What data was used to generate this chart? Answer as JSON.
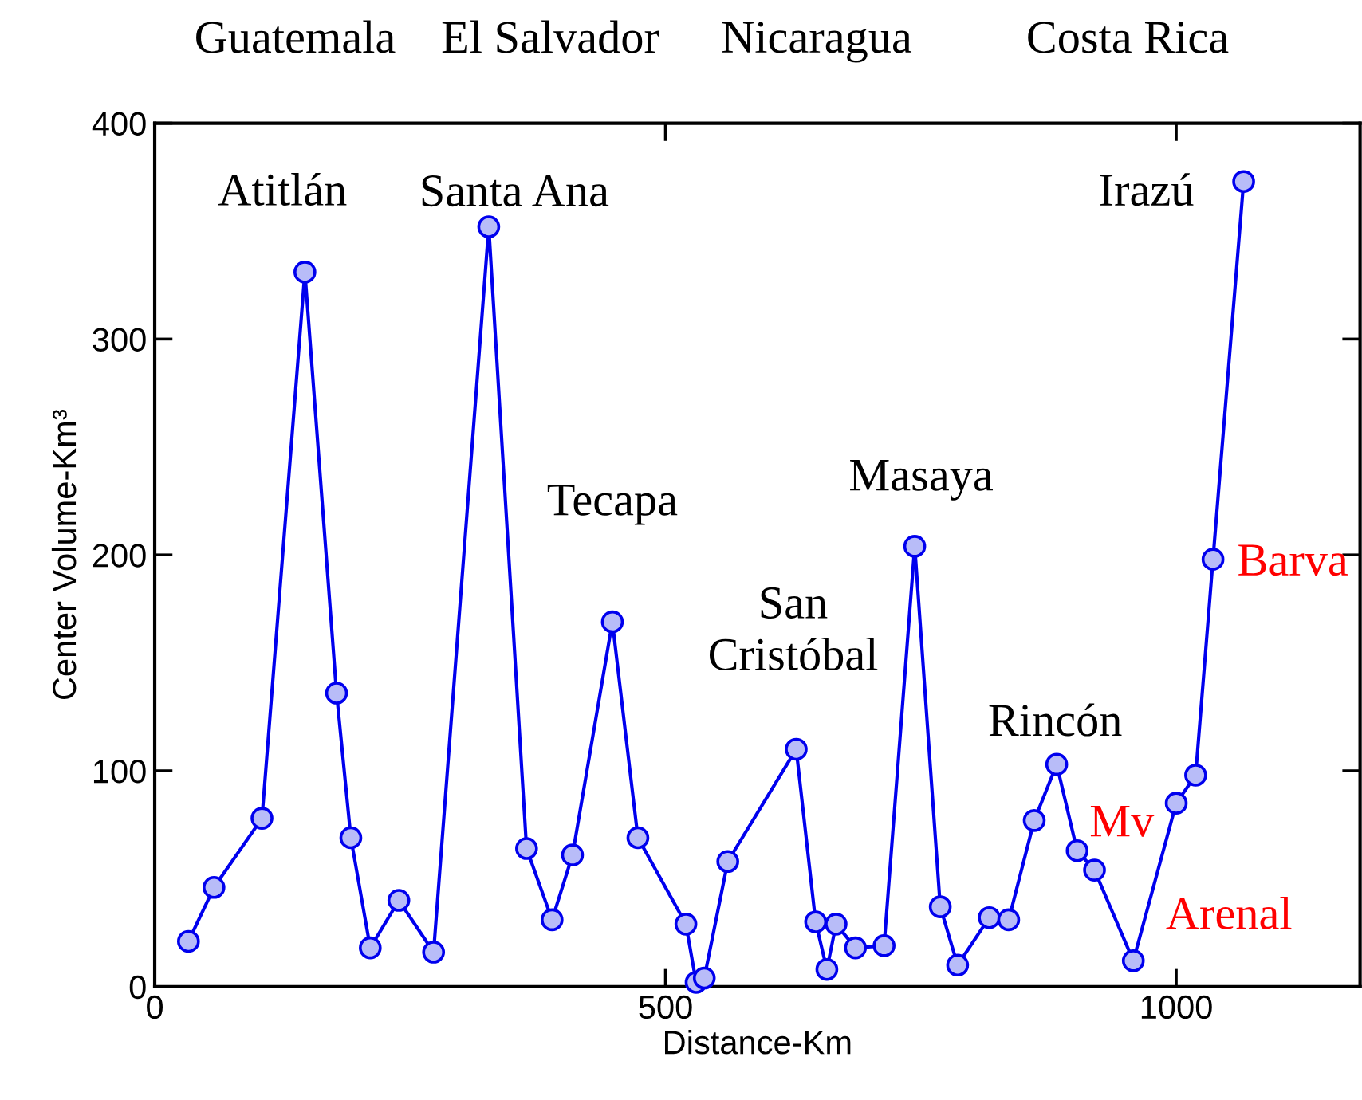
{
  "chart_data": {
    "type": "line",
    "xlabel": "Distance-Km",
    "ylabel": "Center Volume-Km³",
    "x": [
      33,
      58,
      105,
      147,
      178,
      192,
      211,
      239,
      273,
      327,
      364,
      389,
      409,
      448,
      473,
      520,
      530,
      538,
      561,
      628,
      647,
      658,
      667,
      686,
      714,
      744,
      769,
      786,
      817,
      836,
      861,
      883,
      903,
      920,
      958,
      1000,
      1019,
      1036,
      1066
    ],
    "series": [
      {
        "color": "#0000ee",
        "values": [
          21,
          46,
          78,
          331,
          136,
          69,
          18,
          40,
          16,
          352,
          64,
          31,
          61,
          169,
          69,
          29,
          2,
          4,
          58,
          110,
          30,
          8,
          29,
          18,
          19,
          204,
          37,
          10,
          32,
          31,
          77,
          103,
          63,
          54,
          12,
          85,
          98,
          198,
          373
        ]
      }
    ],
    "marker": "circle",
    "line_style": "solid",
    "xlim": [
      0,
      1180
    ],
    "ylim": [
      0,
      400
    ],
    "xticks": [
      0,
      500,
      1000
    ],
    "yticks": [
      0,
      100,
      200,
      300,
      400
    ],
    "grid": false,
    "legend": false,
    "annotations": [
      "Guatemala",
      "El Salvador",
      "Nicaragua",
      "Costa Rica",
      {
        "text": "Atitlán",
        "x": 147,
        "y": 331
      },
      {
        "text": "Santa Ana",
        "x": 327,
        "y": 352
      },
      {
        "text": "Tecapa",
        "x": 448,
        "y": 169
      },
      {
        "text": "San\nCristóbal",
        "x": 628,
        "y": 110
      },
      {
        "text": "Masaya",
        "x": 744,
        "y": 204
      },
      {
        "text": "Rincón",
        "x": 883,
        "y": 103
      },
      {
        "text": "Irazú",
        "x": 1066,
        "y": 373
      },
      {
        "text": "Barva",
        "x": 1036,
        "y": 198
      },
      {
        "text": "Mv",
        "x": 903,
        "y": 63
      },
      {
        "text": "Arenal",
        "x": 958,
        "y": 12
      }
    ]
  }
}
